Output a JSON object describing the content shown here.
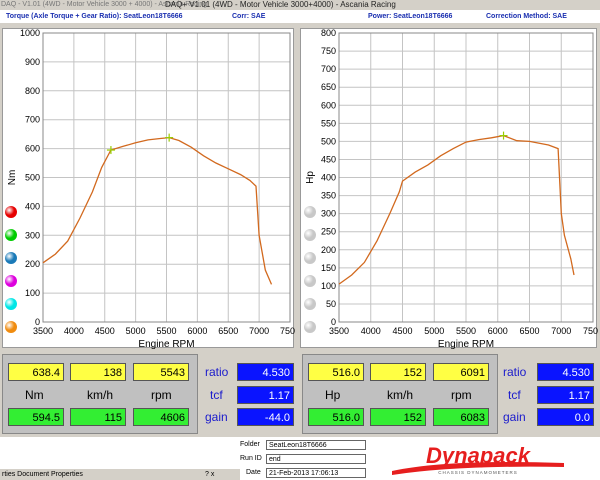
{
  "window": {
    "title": "DAQ+ V1.01 (4WD - Motor Vehicle 3000+4000) - Ascania Racing",
    "caption": "DAQ - V1.01 (4WD - Motor Vehicle 3000 + 4000) - Ascania Racing"
  },
  "header": {
    "left_label": "Torque (Axle Torque + Gear Ratio): SeatLeon18T6666",
    "left_corr": "Corr: SAE",
    "right_label": "Power: SeatLeon18T6666",
    "right_corr": "Correction Method: SAE"
  },
  "chart_data": [
    {
      "type": "line",
      "xlabel": "Engine RPM",
      "ylabel": "Nm",
      "xlim": [
        3500,
        7500
      ],
      "ylim": [
        0,
        1000
      ],
      "xticks": [
        3500,
        4000,
        4500,
        5000,
        5500,
        6000,
        6500,
        7000,
        7500
      ],
      "yticks": [
        0,
        100,
        200,
        300,
        400,
        500,
        600,
        700,
        800,
        900,
        1000
      ],
      "color": "#d2691e",
      "marker_points": [
        [
          4600,
          595
        ],
        [
          5543,
          638
        ]
      ],
      "series": [
        {
          "x": [
            3500,
            3700,
            3900,
            4100,
            4300,
            4450,
            4600,
            4800,
            5000,
            5200,
            5400,
            5543,
            5700,
            5900,
            6100,
            6300,
            6500,
            6700,
            6850,
            6950,
            7000,
            7050,
            7100,
            7200
          ],
          "y": [
            205,
            235,
            280,
            360,
            450,
            535,
            595,
            608,
            620,
            630,
            635,
            638,
            628,
            605,
            575,
            550,
            530,
            510,
            490,
            470,
            300,
            240,
            180,
            130
          ]
        }
      ]
    },
    {
      "type": "line",
      "xlabel": "Engine RPM",
      "ylabel": "Hp",
      "xlim": [
        3500,
        7500
      ],
      "ylim": [
        0,
        800
      ],
      "xticks": [
        3500,
        4000,
        4500,
        5000,
        5500,
        6000,
        6500,
        7000,
        7500
      ],
      "yticks": [
        0,
        50,
        100,
        150,
        200,
        250,
        300,
        350,
        400,
        450,
        500,
        550,
        600,
        650,
        700,
        750,
        800
      ],
      "color": "#d2691e",
      "marker_points": [
        [
          6091,
          516
        ]
      ],
      "series": [
        {
          "x": [
            3500,
            3700,
            3900,
            4100,
            4300,
            4450,
            4500,
            4700,
            4900,
            5100,
            5300,
            5500,
            5700,
            5900,
            6091,
            6300,
            6500,
            6800,
            6950,
            7000,
            7050,
            7150,
            7200
          ],
          "y": [
            105,
            130,
            165,
            225,
            300,
            360,
            390,
            415,
            435,
            460,
            480,
            498,
            505,
            510,
            516,
            502,
            500,
            490,
            480,
            300,
            240,
            175,
            130
          ]
        }
      ]
    }
  ],
  "legend_balls": {
    "left": [
      "#e60000",
      "#00cc00",
      "#1a7ab8",
      "#dd00dd",
      "#00e6e6",
      "#f08c10"
    ],
    "right": [
      "#c8c8c8",
      "#c8c8c8",
      "#c8c8c8",
      "#c8c8c8",
      "#c8c8c8",
      "#c8c8c8"
    ]
  },
  "left_values": {
    "r1": [
      "638.4",
      "138",
      "5543"
    ],
    "u": [
      "Nm",
      "km/h",
      "rpm"
    ],
    "r2": [
      "594.5",
      "115",
      "4606"
    ],
    "ratio_label": "ratio",
    "ratio": "4.530",
    "tcf_label": "tcf",
    "tcf": "1.17",
    "gain_label": "gain",
    "gain": "-44.0"
  },
  "right_values": {
    "r1": [
      "516.0",
      "152",
      "6091"
    ],
    "u": [
      "Hp",
      "km/h",
      "rpm"
    ],
    "r2": [
      "516.0",
      "152",
      "6083"
    ],
    "ratio_label": "ratio",
    "ratio": "4.530",
    "tcf_label": "tcf",
    "tcf": "1.17",
    "gain_label": "gain",
    "gain": "0.0"
  },
  "info": {
    "folder_label": "Folder",
    "folder": "SeatLeon18T6666",
    "runid_label": "Run ID",
    "runid": "end",
    "date_label": "Date",
    "date": "21-Feb-2013 17:06:13"
  },
  "logo": {
    "brand": "Dynapack",
    "tagline": "CHASSIS DYNAMOMETERS"
  },
  "taskbar": {
    "title": "rties Document Properties",
    "buttons": "? x"
  }
}
